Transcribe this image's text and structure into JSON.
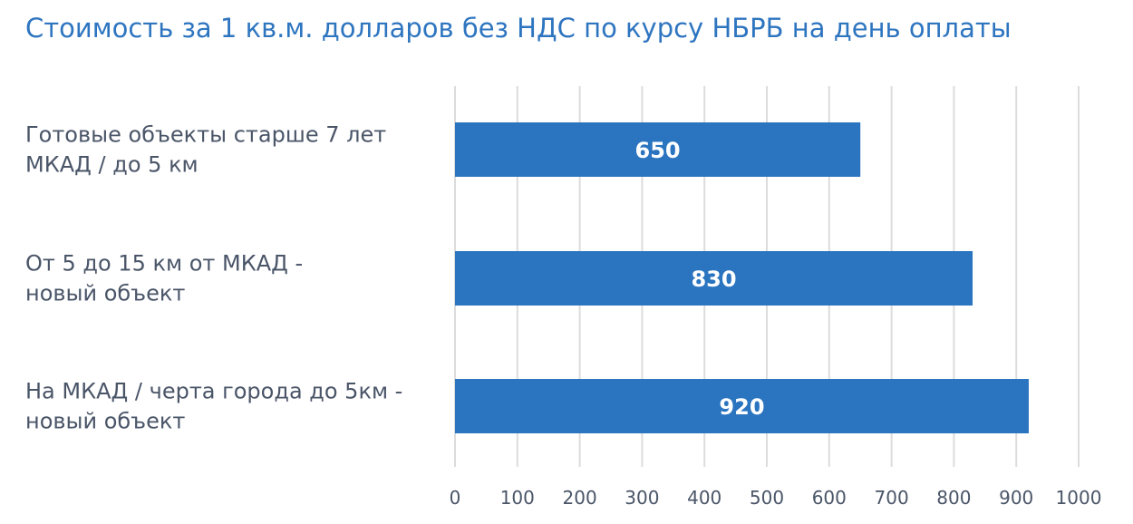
{
  "title": "Стоимость за 1 кв.м. долларов без НДС по курсу НБРБ на день оплаты",
  "colors": {
    "title": "#2E75C0",
    "bar": "#2A74C0",
    "grid": "#dcdcdc",
    "text": "#4a5568"
  },
  "chart_data": {
    "type": "bar",
    "orientation": "horizontal",
    "title": "Стоимость за 1 кв.м. долларов без НДС по курсу НБРБ на день оплаты",
    "categories": [
      [
        "Готовые объекты старше 7 лет",
        "МКАД / до 5 км"
      ],
      [
        "От 5 до 15 км от МКАД -",
        "новый объект"
      ],
      [
        "На МКАД / черта города до 5км -",
        "новый объект"
      ]
    ],
    "values": [
      650,
      830,
      920
    ],
    "data_labels": [
      "650",
      "830",
      "920"
    ],
    "xlim": [
      0,
      1000
    ],
    "ticks": [
      0,
      100,
      200,
      300,
      400,
      500,
      600,
      700,
      800,
      900,
      1000
    ],
    "tick_labels": [
      "0",
      "100",
      "200",
      "300",
      "400",
      "500",
      "600",
      "700",
      "800",
      "900",
      "1000"
    ],
    "grid": true,
    "legend": "none"
  }
}
